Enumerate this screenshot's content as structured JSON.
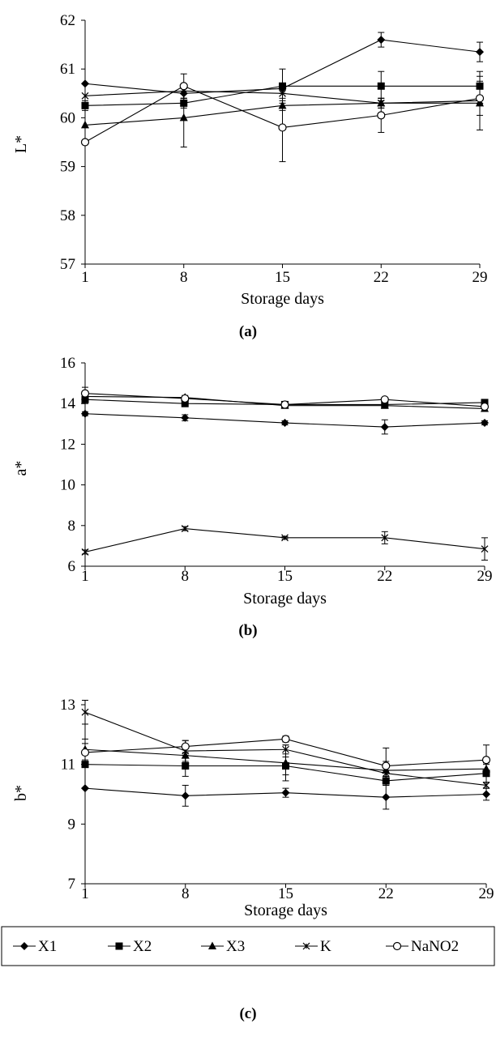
{
  "chart_data": [
    {
      "type": "line",
      "panel_label": "(a)",
      "xlabel": "Storage days",
      "ylabel": "L*",
      "categories": [
        "1",
        "8",
        "15",
        "22",
        "29"
      ],
      "ylim": [
        57,
        62
      ],
      "yticks": [
        "57",
        "58",
        "59",
        "60",
        "61",
        "62"
      ],
      "series": [
        {
          "name": "X1",
          "values": [
            60.7,
            60.5,
            60.6,
            61.6,
            61.35
          ],
          "errors": [
            0.0,
            0.1,
            0.1,
            0.15,
            0.2
          ]
        },
        {
          "name": "X2",
          "values": [
            60.25,
            60.3,
            60.65,
            60.65,
            60.65
          ],
          "errors": [
            0.1,
            0.1,
            0.35,
            0.3,
            0.3
          ]
        },
        {
          "name": "X3",
          "values": [
            59.85,
            60.0,
            60.25,
            60.3,
            60.3
          ],
          "errors": [
            0.0,
            0.6,
            0.1,
            0.1,
            0.55
          ]
        },
        {
          "name": "K",
          "values": [
            60.45,
            60.55,
            60.5,
            60.3,
            60.35
          ],
          "errors": [
            0.0,
            0.0,
            0.1,
            0.1,
            0.1
          ]
        },
        {
          "name": "NaNO2",
          "values": [
            59.5,
            60.65,
            59.8,
            60.05,
            60.4
          ],
          "errors": [
            0.0,
            0.25,
            0.7,
            0.35,
            0.35
          ]
        }
      ]
    },
    {
      "type": "line",
      "panel_label": "(b)",
      "xlabel": "Storage days",
      "ylabel": "a*",
      "categories": [
        "1",
        "8",
        "15",
        "22",
        "29"
      ],
      "ylim": [
        6,
        16
      ],
      "yticks": [
        "6",
        "8",
        "10",
        "12",
        "14",
        "16"
      ],
      "series": [
        {
          "name": "X1",
          "values": [
            13.5,
            13.3,
            13.05,
            12.85,
            13.05
          ],
          "errors": [
            0.1,
            0.15,
            0.1,
            0.35,
            0.1
          ]
        },
        {
          "name": "X2",
          "values": [
            14.2,
            14.0,
            13.95,
            13.95,
            14.05
          ],
          "errors": [
            0.2,
            0.1,
            0.1,
            0.1,
            0.1
          ]
        },
        {
          "name": "X3",
          "values": [
            14.35,
            14.3,
            13.9,
            13.9,
            13.75
          ],
          "errors": [
            0.15,
            0.1,
            0.1,
            0.1,
            0.1
          ]
        },
        {
          "name": "K",
          "values": [
            6.7,
            7.85,
            7.4,
            7.4,
            6.85
          ],
          "errors": [
            0.1,
            0.1,
            0.05,
            0.3,
            0.55
          ]
        },
        {
          "name": "NaNO2",
          "values": [
            14.5,
            14.25,
            13.95,
            14.2,
            13.85
          ],
          "errors": [
            0.3,
            0.1,
            0.1,
            0.1,
            0.1
          ]
        }
      ]
    },
    {
      "type": "line",
      "panel_label": "(c)",
      "xlabel": "Storage days",
      "ylabel": "b*",
      "categories": [
        "1",
        "8",
        "15",
        "22",
        "29"
      ],
      "ylim": [
        7,
        13
      ],
      "yticks": [
        "7",
        "9",
        "11",
        "13"
      ],
      "series": [
        {
          "name": "X1",
          "values": [
            10.2,
            9.95,
            10.05,
            9.9,
            10.0
          ],
          "errors": [
            0.0,
            0.35,
            0.15,
            0.4,
            0.2
          ]
        },
        {
          "name": "X2",
          "values": [
            11.0,
            10.95,
            10.95,
            10.45,
            10.7
          ],
          "errors": [
            0.0,
            0.35,
            0.3,
            0.15,
            0.3
          ]
        },
        {
          "name": "X3",
          "values": [
            11.5,
            11.3,
            11.05,
            10.8,
            10.85
          ],
          "errors": [
            0.35,
            0.3,
            0.6,
            0.2,
            0.2
          ]
        },
        {
          "name": "K",
          "values": [
            12.75,
            11.45,
            11.5,
            10.7,
            10.3
          ],
          "errors": [
            0.4,
            0.35,
            0.15,
            0.4,
            0.1
          ]
        },
        {
          "name": "NaNO2",
          "values": [
            11.4,
            11.6,
            11.85,
            10.95,
            11.15
          ],
          "errors": [
            0.3,
            0.2,
            0.1,
            0.6,
            0.5
          ]
        }
      ]
    }
  ],
  "legend": {
    "position": "bottom",
    "items": [
      {
        "label": "X1",
        "marker": "diamond"
      },
      {
        "label": "X2",
        "marker": "square"
      },
      {
        "label": "X3",
        "marker": "triangle"
      },
      {
        "label": "K",
        "marker": "asterisk"
      },
      {
        "label": "NaNO2",
        "marker": "open-circle"
      }
    ]
  },
  "colors": {
    "line": "#000000",
    "background": "#ffffff"
  }
}
